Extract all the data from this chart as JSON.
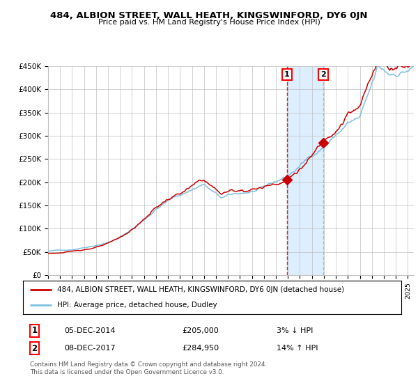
{
  "title": "484, ALBION STREET, WALL HEATH, KINGSWINFORD, DY6 0JN",
  "subtitle": "Price paid vs. HM Land Registry's House Price Index (HPI)",
  "ylim": [
    0,
    450000
  ],
  "xlim_start": 1995.0,
  "xlim_end": 2025.5,
  "sale1_date": 2014.92,
  "sale1_price": 205000,
  "sale2_date": 2017.92,
  "sale2_price": 284950,
  "hpi_color": "#7fbfdf",
  "price_color": "#cc0000",
  "point_color": "#cc0000",
  "bg_color": "#ffffff",
  "grid_color": "#c0c0c0",
  "shade_color": "#ddeeff",
  "legend_label_price": "484, ALBION STREET, WALL HEATH, KINGSWINFORD, DY6 0JN (detached house)",
  "legend_label_hpi": "HPI: Average price, detached house, Dudley",
  "note1_date": "05-DEC-2014",
  "note1_price": "£205,000",
  "note1_pct": "3% ↓ HPI",
  "note2_date": "08-DEC-2017",
  "note2_price": "£284,950",
  "note2_pct": "14% ↑ HPI",
  "footer": "Contains HM Land Registry data © Crown copyright and database right 2024.\nThis data is licensed under the Open Government Licence v3.0."
}
